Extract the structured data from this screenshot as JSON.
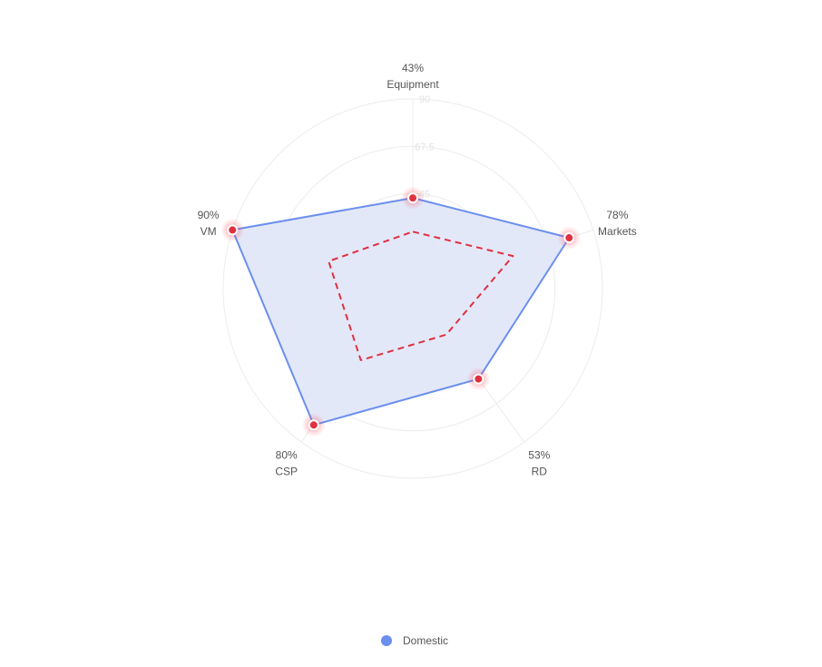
{
  "chart_data": {
    "type": "radar",
    "title": "",
    "indicators": [
      {
        "name": "Equipment",
        "value_label": "43%"
      },
      {
        "name": "Markets",
        "value_label": "78%"
      },
      {
        "name": "RD",
        "value_label": "53%"
      },
      {
        "name": "CSP",
        "value_label": "80%"
      },
      {
        "name": "VM",
        "value_label": "90%"
      }
    ],
    "axis": {
      "min": 0,
      "max": 90,
      "ticks": [
        "0",
        "22.5",
        "45",
        "67.5",
        "90"
      ],
      "ring_values": [
        22.5,
        45,
        67.5,
        90
      ]
    },
    "series": [
      {
        "name": "Domestic",
        "values": [
          43,
          78,
          53,
          80,
          90
        ],
        "line_color": "#6b8fee",
        "area_color": "#e2e7f9",
        "point_color": "#e0303f",
        "style": "solid"
      },
      {
        "values": [
          27,
          50,
          27,
          42,
          42
        ],
        "line_color": "#e0303f",
        "style": "dashed"
      }
    ],
    "legend": {
      "position": "bottom-center",
      "items": [
        {
          "label": "Domestic",
          "color": "#6b8fee"
        }
      ]
    }
  }
}
